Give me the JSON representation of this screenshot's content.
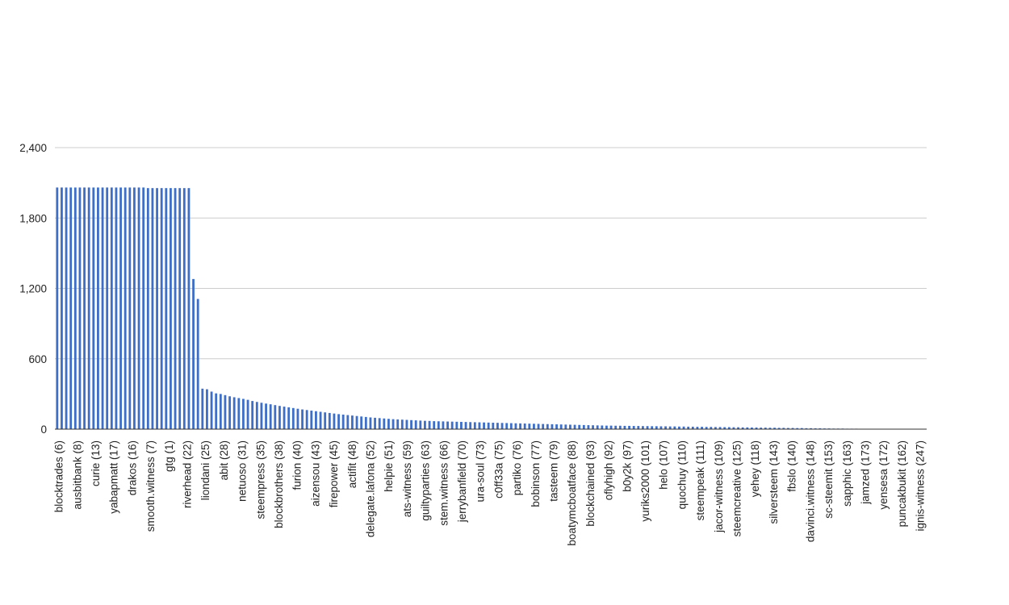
{
  "chart_data": {
    "type": "bar",
    "title": "",
    "xlabel": "",
    "ylabel": "",
    "ylim": [
      0,
      2400
    ],
    "yticks": [
      0,
      600,
      1200,
      1800,
      2400
    ],
    "grid": true,
    "legend": "none",
    "bar_color": "#3d6ec8",
    "grid_color": "#cccccc",
    "axis_color": "#333333",
    "visible_labels": [
      "blocktrades (6)",
      "ausbitbank (8)",
      "curie (13)",
      "yabapmatt (17)",
      "drakos (16)",
      "smooth.witness (7)",
      "gtg (1)",
      "riverhead (22)",
      "liondani (25)",
      "abit (28)",
      "netuoso (31)",
      "steempress (35)",
      "blockbrothers (38)",
      "furion (40)",
      "aizensou (43)",
      "firepower (45)",
      "actifit (48)",
      "delegate.lafona (52)",
      "helpie (51)",
      "ats-witness (59)",
      "guiltyparties (63)",
      "stem.witness (66)",
      "jerrybanfield (70)",
      "ura-soul (73)",
      "c0ff33a (75)",
      "partiko (76)",
      "bobinson (77)",
      "tasteem (79)",
      "boatymcboatface (88)",
      "blockchained (93)",
      "oflyhigh (92)",
      "b0y2k (97)",
      "yuriks2000 (101)",
      "helo (107)",
      "quochuy (110)",
      "steempeak (111)",
      "jacor-witness (109)",
      "steemcreative (125)",
      "yehey (118)",
      "silversteem (143)",
      "fbslo (140)",
      "davinci.witness (148)",
      "sc-steemit (153)",
      "sapphic (163)",
      "jamzed (173)",
      "yensesa (172)",
      "puncakbukit (162)",
      "ignis-witness (247)"
    ],
    "values": [
      2060,
      2060,
      2060,
      2060,
      2060,
      2060,
      2060,
      2060,
      2060,
      2060,
      2060,
      2060,
      2060,
      2060,
      2060,
      2060,
      2060,
      2060,
      2060,
      2060,
      2055,
      2055,
      2055,
      2055,
      2055,
      2055,
      2055,
      2055,
      2055,
      2055,
      1280,
      1110,
      345,
      340,
      320,
      305,
      300,
      290,
      280,
      272,
      265,
      258,
      250,
      240,
      232,
      225,
      218,
      212,
      205,
      198,
      192,
      186,
      180,
      174,
      168,
      163,
      158,
      153,
      148,
      143,
      138,
      133,
      128,
      124,
      120,
      116,
      112,
      108,
      104,
      100,
      97,
      94,
      91,
      88,
      85,
      83,
      81,
      79,
      77,
      75,
      73,
      71,
      70,
      68,
      67,
      66,
      65,
      64,
      63,
      62,
      61,
      60,
      59,
      58,
      57,
      56,
      55,
      54,
      53,
      52,
      51,
      50,
      49,
      48,
      47,
      46,
      45,
      44,
      43,
      42,
      41,
      40,
      39,
      38,
      37,
      36,
      35,
      34,
      33,
      32,
      31,
      30,
      30,
      29,
      29,
      28,
      28,
      27,
      27,
      26,
      26,
      25,
      25,
      24,
      24,
      23,
      23,
      22,
      22,
      21,
      21,
      20,
      20,
      19,
      19,
      18,
      18,
      17,
      17,
      16,
      16,
      15,
      15,
      14,
      14,
      13,
      13,
      12,
      12,
      11,
      11,
      10,
      10,
      9,
      9,
      8,
      8,
      7,
      7,
      6,
      6,
      5,
      5,
      5,
      4,
      4,
      4,
      3,
      3,
      3,
      3,
      2,
      2,
      2,
      2,
      2,
      1,
      1,
      1,
      1,
      1,
      1
    ]
  }
}
